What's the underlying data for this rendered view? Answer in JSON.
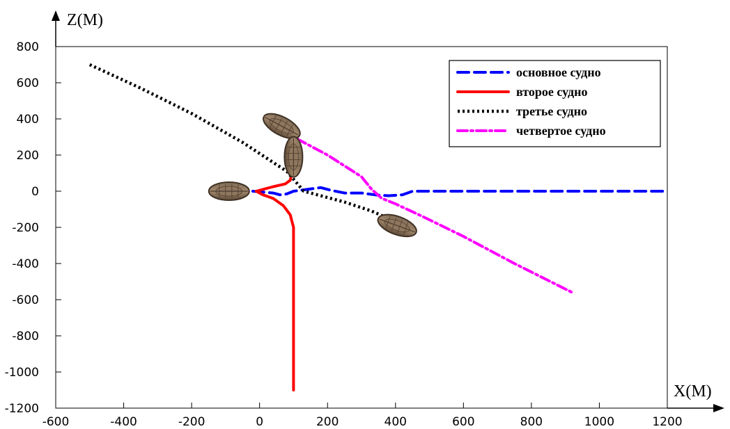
{
  "chart_data": {
    "type": "line",
    "xlabel": "X(M)",
    "ylabel": "Z(M)",
    "xlim": [
      -600,
      1200
    ],
    "ylim": [
      -1200,
      800
    ],
    "x_ticks": [
      -600,
      -400,
      -200,
      0,
      200,
      400,
      600,
      800,
      1000,
      1200
    ],
    "y_ticks": [
      800,
      600,
      400,
      200,
      0,
      -200,
      -400,
      -600,
      -800,
      -1000,
      -1200
    ],
    "grid": true,
    "legend_position": "top-right",
    "series": [
      {
        "name": "основное судно",
        "color": "#0000ff",
        "line_style": "dashed",
        "points": [
          [
            -20,
            0
          ],
          [
            40,
            -10
          ],
          [
            60,
            -20
          ],
          [
            80,
            -15
          ],
          [
            100,
            0
          ],
          [
            140,
            10
          ],
          [
            180,
            20
          ],
          [
            210,
            5
          ],
          [
            250,
            -10
          ],
          [
            300,
            -10
          ],
          [
            340,
            -20
          ],
          [
            380,
            -25
          ],
          [
            420,
            -20
          ],
          [
            450,
            0
          ],
          [
            500,
            0
          ],
          [
            700,
            0
          ],
          [
            900,
            0
          ],
          [
            1200,
            0
          ]
        ]
      },
      {
        "name": "второе судно",
        "color": "#ff0000",
        "line_style": "solid",
        "points": [
          [
            95,
            100
          ],
          [
            90,
            60
          ],
          [
            75,
            40
          ],
          [
            40,
            25
          ],
          [
            10,
            10
          ],
          [
            -10,
            0
          ],
          [
            10,
            -20
          ],
          [
            40,
            -40
          ],
          [
            70,
            -80
          ],
          [
            90,
            -130
          ],
          [
            100,
            -200
          ],
          [
            100,
            -400
          ],
          [
            100,
            -800
          ],
          [
            100,
            -1100
          ]
        ]
      },
      {
        "name": "третье судно",
        "color": "#000000",
        "line_style": "dotted",
        "points": [
          [
            -500,
            700
          ],
          [
            -350,
            570
          ],
          [
            -200,
            430
          ],
          [
            -50,
            270
          ],
          [
            80,
            110
          ],
          [
            130,
            0
          ],
          [
            250,
            -60
          ],
          [
            330,
            -110
          ],
          [
            390,
            -160
          ]
        ]
      },
      {
        "name": "четвертое судно",
        "color": "#ff00ff",
        "line_style": "dashdot",
        "points": [
          [
            110,
            290
          ],
          [
            200,
            200
          ],
          [
            300,
            80
          ],
          [
            330,
            10
          ],
          [
            360,
            -40
          ],
          [
            400,
            -70
          ],
          [
            480,
            -140
          ],
          [
            600,
            -250
          ],
          [
            750,
            -400
          ],
          [
            920,
            -560
          ]
        ]
      }
    ],
    "vessels": [
      {
        "x": -90,
        "z": 0,
        "heading_deg": 0
      },
      {
        "x": 65,
        "z": 360,
        "heading_deg": 28
      },
      {
        "x": 100,
        "z": 190,
        "heading_deg": 90
      },
      {
        "x": 405,
        "z": -190,
        "heading_deg": 20
      }
    ]
  }
}
